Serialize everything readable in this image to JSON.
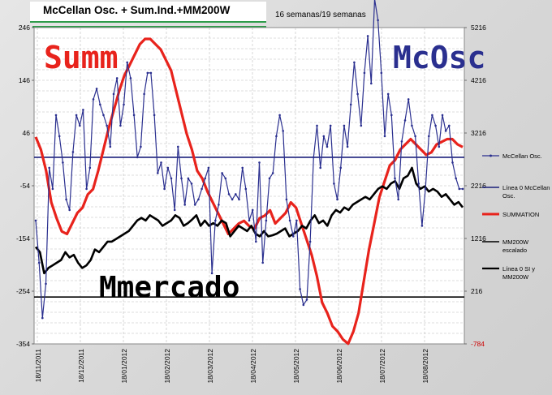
{
  "header": {
    "title": "McCellan Osc. + Sum.Ind.+MM200W",
    "subtitle": "16 semanas/19 semanas"
  },
  "annotations": {
    "summ": "Summ",
    "mcosc": "McOsc",
    "mmercado": "Mmercado"
  },
  "colors": {
    "mcclellan": "#2a2f8f",
    "zero_line": "#1a1f7a",
    "summation": "#e8231c",
    "mm200w": "#000000",
    "zero_line_mm200w": "#000000",
    "right_axis_last": "#cc0000"
  },
  "chart_data": {
    "type": "line",
    "x_labels": [
      "18/11/2011",
      "18/12/2011",
      "18/01/2012",
      "18/02/2012",
      "18/03/2012",
      "18/04/2012",
      "18/05/2012",
      "18/06/2012",
      "18/07/2012",
      "18/08/2012"
    ],
    "y_left": {
      "ticks": [
        "246",
        "146",
        "46",
        "-54",
        "-154",
        "-254",
        "-354"
      ],
      "min": -354,
      "max": 246
    },
    "y_right": {
      "ticks": [
        "5216",
        "4216",
        "3216",
        "2216",
        "1216",
        "216",
        "-784"
      ],
      "min": -784,
      "max": 5216
    },
    "grid": true,
    "legend": {
      "position": "right",
      "entries": [
        "McCellan Osc.",
        "Línea 0 McCellan Osc.",
        "SUMMATION",
        "MM200W escalado",
        "Línea 0 SI y MM200W"
      ]
    },
    "series": [
      {
        "name": "McCellan Osc.",
        "axis": "left",
        "values": [
          -120,
          -200,
          -305,
          -240,
          -20,
          -60,
          80,
          40,
          -10,
          -80,
          -100,
          10,
          80,
          60,
          90,
          -60,
          -20,
          110,
          130,
          100,
          80,
          60,
          20,
          120,
          150,
          60,
          100,
          180,
          150,
          80,
          0,
          20,
          120,
          160,
          160,
          80,
          -30,
          -10,
          -60,
          -20,
          -40,
          -100,
          20,
          -40,
          -90,
          -40,
          -50,
          -90,
          -80,
          -60,
          -40,
          -20,
          -220,
          -120,
          -90,
          -30,
          -40,
          -70,
          -80,
          -70,
          -80,
          -20,
          -60,
          -120,
          -100,
          -160,
          -10,
          -200,
          -120,
          -40,
          -30,
          40,
          80,
          50,
          -80,
          -120,
          -150,
          -120,
          -250,
          -280,
          -270,
          -160,
          0,
          60,
          -20,
          40,
          20,
          60,
          -50,
          -80,
          -20,
          60,
          20,
          100,
          180,
          120,
          60,
          160,
          230,
          140,
          300,
          260,
          160,
          40,
          120,
          80,
          -40,
          -80,
          30,
          70,
          110,
          60,
          40,
          -50,
          -130,
          -60,
          40,
          80,
          60,
          20,
          80,
          50,
          60,
          -10,
          -40,
          -60,
          -60
        ]
      },
      {
        "name": "Línea 0 McCellan Osc.",
        "axis": "left",
        "values": [
          0,
          0
        ]
      },
      {
        "name": "SUMMATION",
        "axis": "right",
        "values": [
          3140,
          2900,
          2500,
          1900,
          1600,
          1350,
          1300,
          1500,
          1700,
          1800,
          2050,
          2150,
          2500,
          2900,
          3300,
          3650,
          4000,
          4300,
          4500,
          4700,
          4900,
          5000,
          5000,
          4900,
          4800,
          4600,
          4400,
          4000,
          3600,
          3200,
          2900,
          2500,
          2350,
          2100,
          1900,
          1700,
          1500,
          1300,
          1400,
          1500,
          1550,
          1450,
          1400,
          1600,
          1650,
          1750,
          1500,
          1600,
          1700,
          1900,
          1800,
          1500,
          1200,
          900,
          500,
          0,
          -200,
          -450,
          -550,
          -700,
          -780,
          -550,
          -200,
          400,
          1000,
          1500,
          2000,
          2300,
          2600,
          2700,
          2900,
          3000,
          3100,
          3000,
          2900,
          2800,
          2850,
          3000,
          3050,
          3100,
          3100,
          3000,
          2950
        ]
      },
      {
        "name": "MM200W escalado",
        "axis": "left",
        "values": [
          -170,
          -180,
          -220,
          -210,
          -205,
          -200,
          -195,
          -180,
          -190,
          -185,
          -200,
          -210,
          -205,
          -195,
          -175,
          -180,
          -170,
          -160,
          -160,
          -155,
          -150,
          -145,
          -140,
          -130,
          -120,
          -115,
          -120,
          -110,
          -115,
          -120,
          -130,
          -125,
          -120,
          -110,
          -115,
          -130,
          -125,
          -118,
          -110,
          -130,
          -120,
          -130,
          -125,
          -130,
          -120,
          -125,
          -150,
          -140,
          -130,
          -135,
          -140,
          -130,
          -145,
          -150,
          -140,
          -150,
          -148,
          -145,
          -140,
          -135,
          -150,
          -145,
          -140,
          -130,
          -135,
          -120,
          -110,
          -125,
          -120,
          -130,
          -110,
          -100,
          -105,
          -95,
          -100,
          -90,
          -85,
          -80,
          -75,
          -80,
          -70,
          -60,
          -55,
          -60,
          -50,
          -45,
          -60,
          -40,
          -35,
          -20,
          -50,
          -60,
          -55,
          -65,
          -60,
          -65,
          -75,
          -70,
          -80,
          -90,
          -85,
          -95
        ]
      },
      {
        "name": "Línea 0 SI y MM200W",
        "axis": "left",
        "values": [
          -265,
          -265
        ]
      }
    ]
  }
}
